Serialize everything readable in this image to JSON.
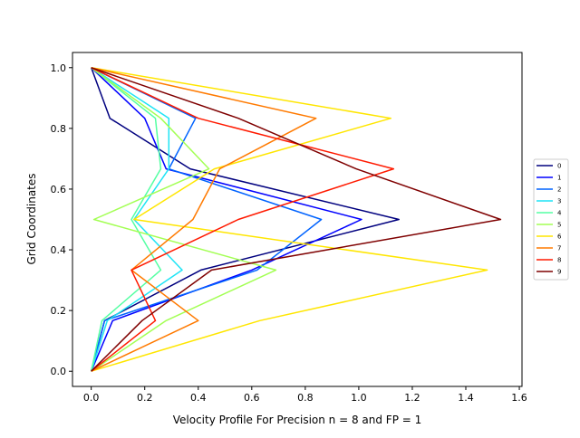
{
  "chart_data": {
    "type": "line",
    "title": "",
    "xlabel": "Velocity Profile For Precision n = 8 and FP = 1",
    "ylabel": "Grid Coordinates",
    "xlim": [
      -0.07,
      1.61
    ],
    "ylim": [
      -0.05,
      1.05
    ],
    "xticks": [
      0.0,
      0.2,
      0.4,
      0.6,
      0.8,
      1.0,
      1.2,
      1.4,
      1.6
    ],
    "xtick_labels": [
      "0.0",
      "0.2",
      "0.4",
      "0.6",
      "0.8",
      "1.0",
      "1.2",
      "1.4",
      "1.6"
    ],
    "yticks": [
      0.0,
      0.2,
      0.4,
      0.6,
      0.8,
      1.0
    ],
    "ytick_labels": [
      "0.0",
      "0.2",
      "0.4",
      "0.6",
      "0.8",
      "1.0"
    ],
    "grid": false,
    "legend_position": "center-right",
    "y": [
      0,
      0.1667,
      0.3333,
      0.5,
      0.6667,
      0.8333,
      1.0
    ],
    "series": [
      {
        "name": "0",
        "color": "#00007f",
        "x": [
          0,
          0.05,
          0.41,
          1.15,
          0.37,
          0.07,
          0
        ]
      },
      {
        "name": "1",
        "color": "#0000ff",
        "x": [
          0,
          0.08,
          0.6,
          1.01,
          0.28,
          0.2,
          0
        ]
      },
      {
        "name": "2",
        "color": "#0063ff",
        "x": [
          0,
          0.05,
          0.62,
          0.86,
          0.29,
          0.39,
          0
        ]
      },
      {
        "name": "3",
        "color": "#1ee4f5",
        "x": [
          0,
          0.06,
          0.34,
          0.16,
          0.29,
          0.29,
          0
        ]
      },
      {
        "name": "4",
        "color": "#54ffa3",
        "x": [
          0,
          0.04,
          0.26,
          0.15,
          0.26,
          0.24,
          0
        ]
      },
      {
        "name": "5",
        "color": "#a3ff54",
        "x": [
          0,
          0.28,
          0.69,
          0.01,
          0.44,
          0.26,
          0
        ]
      },
      {
        "name": "6",
        "color": "#ffe600",
        "x": [
          0,
          0.63,
          1.48,
          0.16,
          0.46,
          1.12,
          0
        ]
      },
      {
        "name": "7",
        "color": "#ff7a00",
        "x": [
          0,
          0.4,
          0.15,
          0.38,
          0.48,
          0.84,
          0
        ]
      },
      {
        "name": "8",
        "color": "#ff1a00",
        "x": [
          0,
          0.24,
          0.15,
          0.55,
          1.13,
          0.4,
          0
        ]
      },
      {
        "name": "9",
        "color": "#7f0000",
        "x": [
          0,
          0.19,
          0.45,
          1.53,
          0.99,
          0.55,
          0
        ]
      }
    ]
  }
}
